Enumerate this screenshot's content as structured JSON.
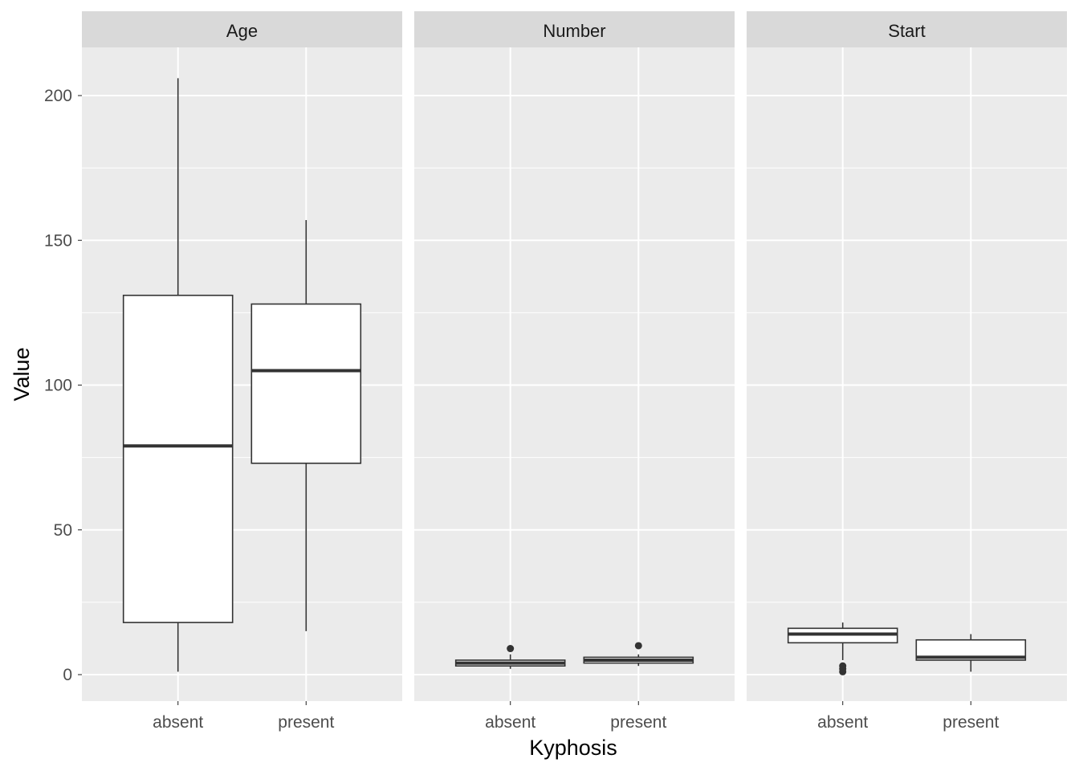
{
  "chart_data": {
    "type": "boxplot",
    "facet_by": [
      "Age",
      "Number",
      "Start"
    ],
    "xlabel": "Kyphosis",
    "ylabel": "Value",
    "categories": [
      "absent",
      "present"
    ],
    "ylim": [
      -9,
      216
    ],
    "y_ticks": [
      0,
      50,
      100,
      150,
      200
    ],
    "grid": true,
    "facets": [
      {
        "name": "Age",
        "boxes": [
          {
            "category": "absent",
            "min": 1,
            "q1": 18,
            "median": 79,
            "q3": 131,
            "max": 206,
            "outliers": []
          },
          {
            "category": "present",
            "min": 15,
            "q1": 73,
            "median": 105,
            "q3": 128,
            "max": 157,
            "outliers": []
          }
        ]
      },
      {
        "name": "Number",
        "boxes": [
          {
            "category": "absent",
            "min": 2,
            "q1": 3,
            "median": 4,
            "q3": 5,
            "max": 7,
            "outliers": [
              9
            ]
          },
          {
            "category": "present",
            "min": 3,
            "q1": 4,
            "median": 5,
            "q3": 6,
            "max": 7,
            "outliers": [
              10
            ]
          }
        ]
      },
      {
        "name": "Start",
        "boxes": [
          {
            "category": "absent",
            "min": 5,
            "q1": 11,
            "median": 14,
            "q3": 16,
            "max": 18,
            "outliers": [
              1,
              2,
              3
            ]
          },
          {
            "category": "present",
            "min": 1,
            "q1": 5,
            "median": 6,
            "q3": 12,
            "max": 14,
            "outliers": []
          }
        ]
      }
    ]
  }
}
